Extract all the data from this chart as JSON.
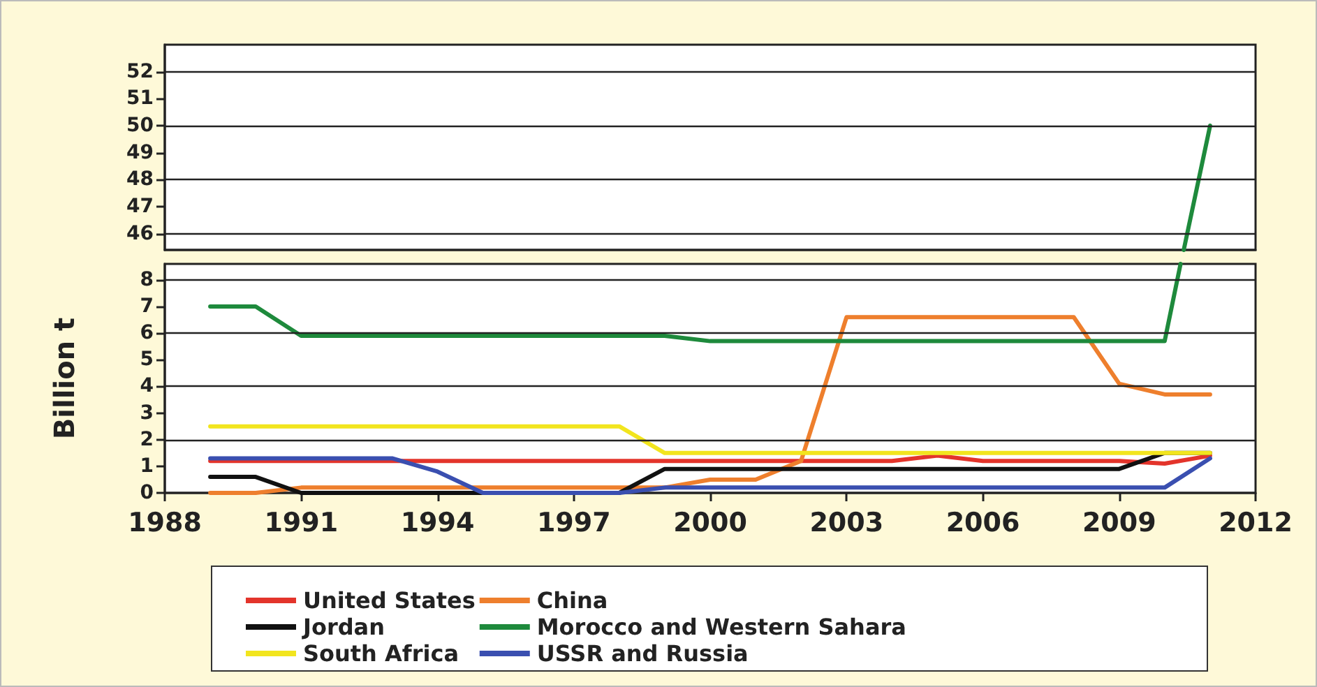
{
  "chart_data": [
    {
      "type": "line",
      "xlim": [
        1988,
        2012
      ],
      "xticks": [
        1988,
        1991,
        1994,
        1997,
        2000,
        2003,
        2006,
        2009,
        2012
      ],
      "ylim": [
        45.4,
        53
      ],
      "yticks": [
        46,
        47,
        48,
        49,
        50,
        51,
        52
      ],
      "tick_labels": "y",
      "grid": "y",
      "marker": "none",
      "line_style": "solid",
      "series": [
        {
          "color": "#1e8a3c",
          "x": [
            2010.42,
            2011
          ],
          "values": [
            45.4,
            50
          ]
        }
      ]
    },
    {
      "type": "line",
      "xlim": [
        1988,
        2012
      ],
      "xticks": [
        1988,
        1991,
        1994,
        1997,
        2000,
        2003,
        2006,
        2009,
        2012
      ],
      "ylim": [
        0,
        8.6
      ],
      "yticks": [
        0,
        1,
        2,
        3,
        4,
        5,
        6,
        7,
        8
      ],
      "ylabel": "Billion t",
      "grid": "y",
      "legend": "bottom",
      "marker": "none",
      "line_style": "solid",
      "x": [
        1989,
        1990,
        1991,
        1992,
        1993,
        1994,
        1995,
        1996,
        1997,
        1998,
        1999,
        2000,
        2001,
        2002,
        2003,
        2004,
        2005,
        2006,
        2007,
        2008,
        2009,
        2010,
        2011
      ],
      "series": [
        {
          "name": "United States",
          "color": "#e3342b",
          "values": [
            1.2,
            1.2,
            1.2,
            1.2,
            1.2,
            1.2,
            1.2,
            1.2,
            1.2,
            1.2,
            1.2,
            1.2,
            1.2,
            1.2,
            1.2,
            1.2,
            1.4,
            1.2,
            1.2,
            1.2,
            1.2,
            1.1,
            1.4
          ]
        },
        {
          "name": "China",
          "color": "#ee7f2d",
          "values": [
            0,
            0,
            0.2,
            0.2,
            0.2,
            0.2,
            0.2,
            0.2,
            0.2,
            0.2,
            0.2,
            0.5,
            0.5,
            1.2,
            6.6,
            6.6,
            6.6,
            6.6,
            6.6,
            6.6,
            4.1,
            3.7,
            3.7
          ]
        },
        {
          "name": "Jordan",
          "color": "#111111",
          "values": [
            0.6,
            0.6,
            0,
            0,
            0,
            0,
            0,
            0,
            0,
            0,
            0.9,
            0.9,
            0.9,
            0.9,
            0.9,
            0.9,
            0.9,
            0.9,
            0.9,
            0.9,
            0.9,
            1.5,
            1.5
          ]
        },
        {
          "name": "Morocco and Western Sahara",
          "color": "#1e8a3c",
          "x": [
            1989,
            1990,
            1991,
            1992,
            1993,
            1994,
            1995,
            1996,
            1997,
            1998,
            1999,
            2000,
            2001,
            2002,
            2003,
            2004,
            2005,
            2006,
            2007,
            2008,
            2009,
            2010,
            2010.35
          ],
          "values": [
            7,
            7,
            5.9,
            5.9,
            5.9,
            5.9,
            5.9,
            5.9,
            5.9,
            5.9,
            5.9,
            5.7,
            5.7,
            5.7,
            5.7,
            5.7,
            5.7,
            5.7,
            5.7,
            5.7,
            5.7,
            5.7,
            8.6
          ]
        },
        {
          "name": "South Africa",
          "color": "#f2e51e",
          "values": [
            2.5,
            2.5,
            2.5,
            2.5,
            2.5,
            2.5,
            2.5,
            2.5,
            2.5,
            2.5,
            1.5,
            1.5,
            1.5,
            1.5,
            1.5,
            1.5,
            1.5,
            1.5,
            1.5,
            1.5,
            1.5,
            1.5,
            1.5
          ]
        },
        {
          "name": "USSR and Russia",
          "color": "#3a4fb0",
          "values": [
            1.3,
            1.3,
            1.3,
            1.3,
            1.3,
            0.8,
            0,
            0,
            0,
            0,
            0.2,
            0.2,
            0.2,
            0.2,
            0.2,
            0.2,
            0.2,
            0.2,
            0.2,
            0.2,
            0.2,
            0.2,
            1.3
          ]
        }
      ]
    }
  ]
}
